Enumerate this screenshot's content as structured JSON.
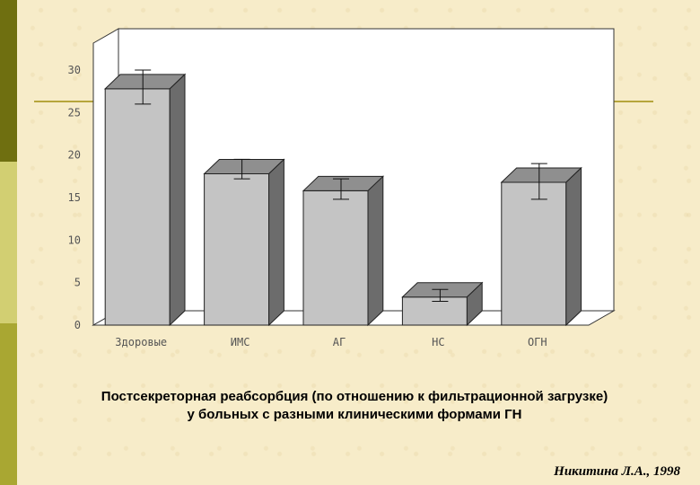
{
  "chart_data": {
    "type": "bar",
    "categories": [
      "Здоровые",
      "ИМС",
      "АГ",
      "НС",
      "ОГН"
    ],
    "values": [
      27.8,
      17.8,
      15.8,
      3.3,
      16.8
    ],
    "error_low": [
      26,
      17.2,
      14.8,
      2.8,
      14.8
    ],
    "error_high": [
      30,
      19.5,
      17.2,
      4.2,
      19
    ],
    "yticks": [
      "0",
      "5",
      "10",
      "15",
      "20",
      "25",
      "30"
    ],
    "ylim": [
      0,
      30
    ],
    "grid": false,
    "colors": {
      "front": "#c4c4c4",
      "top": "#8f8f8f",
      "side": "#6c6c6c"
    }
  },
  "caption": {
    "line1": "Постсекреторная реабсорбция (по отношению к фильтрационной загрузке)",
    "line2": "у больных с разными клиническими формами ГН"
  },
  "credit": "Никитина Л.А., 1998"
}
